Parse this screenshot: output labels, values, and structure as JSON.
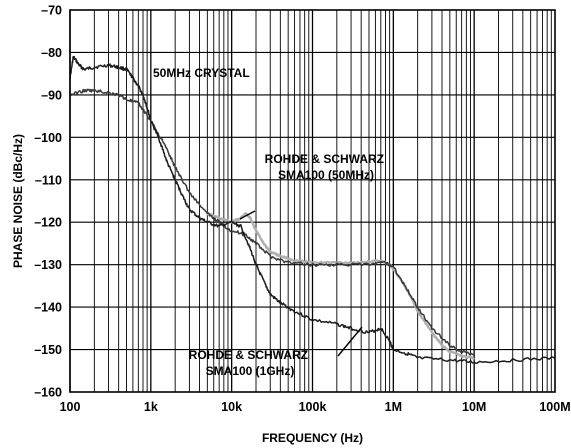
{
  "chart_data": {
    "type": "line",
    "title": "",
    "xlabel": "FREQUENCY (Hz)",
    "ylabel": "PHASE NOISE (dBc/Hz)",
    "x_scale": "log",
    "xlim": [
      100,
      100000000
    ],
    "ylim": [
      -160,
      -70
    ],
    "grid": true,
    "x_tick_labels": [
      "100",
      "1k",
      "10k",
      "100k",
      "1M",
      "10M",
      "100M"
    ],
    "y_tick_labels": [
      "–70",
      "–80",
      "–90",
      "–100",
      "–110",
      "–120",
      "–130",
      "–140",
      "–150",
      "–160"
    ],
    "annotations": [
      {
        "lines": [
          "50MHz CRYSTAL"
        ]
      },
      {
        "lines": [
          "ROHDE & SCHWARZ",
          "SMA100 (50MHz)"
        ]
      },
      {
        "lines": [
          "ROHDE & SCHWARZ",
          "SMA100 (1GHz)"
        ]
      }
    ],
    "series": [
      {
        "label_ref": "50MHz CRYSTAL",
        "color": "#1c1c1c",
        "points": [
          [
            100,
            -86
          ],
          [
            110,
            -81
          ],
          [
            130,
            -83
          ],
          [
            150,
            -84
          ],
          [
            200,
            -83.5
          ],
          [
            300,
            -83
          ],
          [
            400,
            -83.5
          ],
          [
            500,
            -84
          ],
          [
            600,
            -86
          ],
          [
            700,
            -88
          ],
          [
            800,
            -90
          ],
          [
            900,
            -93
          ],
          [
            1000,
            -96
          ],
          [
            1300,
            -101
          ],
          [
            1600,
            -106
          ],
          [
            2000,
            -110
          ],
          [
            2500,
            -114
          ],
          [
            3000,
            -117
          ],
          [
            4000,
            -119
          ],
          [
            5000,
            -120
          ],
          [
            7000,
            -121
          ],
          [
            10000,
            -120
          ],
          [
            13000,
            -121
          ],
          [
            16000,
            -125
          ],
          [
            20000,
            -130
          ],
          [
            25000,
            -134
          ],
          [
            30000,
            -137
          ],
          [
            40000,
            -139
          ],
          [
            60000,
            -141
          ],
          [
            100000,
            -143
          ],
          [
            200000,
            -144
          ],
          [
            300000,
            -145
          ],
          [
            500000,
            -146
          ],
          [
            700000,
            -145
          ],
          [
            900000,
            -148
          ],
          [
            1000000,
            -150
          ],
          [
            1500000,
            -151
          ],
          [
            2000000,
            -152
          ],
          [
            5000000,
            -152.5
          ],
          [
            10000000,
            -153
          ],
          [
            30000000,
            -152.5
          ],
          [
            100000000,
            -152
          ]
        ]
      },
      {
        "label_ref": "SMA100 (50MHz)",
        "color": "#b0b0b0",
        "points": [
          [
            5000,
            -118
          ],
          [
            7000,
            -119
          ],
          [
            10000,
            -120
          ],
          [
            13000,
            -119
          ],
          [
            15000,
            -118
          ],
          [
            17000,
            -119
          ],
          [
            20000,
            -122
          ],
          [
            25000,
            -125
          ],
          [
            30000,
            -127
          ],
          [
            40000,
            -128
          ],
          [
            60000,
            -129
          ],
          [
            100000,
            -129.5
          ],
          [
            200000,
            -129.5
          ],
          [
            400000,
            -129.5
          ],
          [
            700000,
            -129
          ],
          [
            900000,
            -130
          ],
          [
            1000000,
            -131
          ],
          [
            1500000,
            -136
          ],
          [
            2000000,
            -141
          ],
          [
            3000000,
            -146
          ],
          [
            4000000,
            -149
          ],
          [
            5000000,
            -150.5
          ],
          [
            7000000,
            -151.5
          ],
          [
            10000000,
            -152
          ]
        ]
      },
      {
        "label_ref": "SMA100 (1GHz)",
        "color": "#3a3a3a",
        "points": [
          [
            100,
            -90
          ],
          [
            150,
            -89
          ],
          [
            200,
            -89
          ],
          [
            300,
            -89.5
          ],
          [
            400,
            -90
          ],
          [
            500,
            -91
          ],
          [
            700,
            -92
          ],
          [
            1000,
            -96
          ],
          [
            1500,
            -102
          ],
          [
            2000,
            -107
          ],
          [
            3000,
            -113
          ],
          [
            5000,
            -118
          ],
          [
            7000,
            -120
          ],
          [
            10000,
            -122
          ],
          [
            15000,
            -123
          ],
          [
            20000,
            -125
          ],
          [
            30000,
            -128
          ],
          [
            50000,
            -129.5
          ],
          [
            100000,
            -130
          ],
          [
            200000,
            -130
          ],
          [
            500000,
            -130
          ],
          [
            800000,
            -129.5
          ],
          [
            1000000,
            -130.5
          ],
          [
            1500000,
            -136
          ],
          [
            2000000,
            -140
          ],
          [
            3000000,
            -145
          ],
          [
            5000000,
            -149
          ],
          [
            7000000,
            -150.5
          ],
          [
            10000000,
            -151
          ]
        ]
      }
    ]
  }
}
